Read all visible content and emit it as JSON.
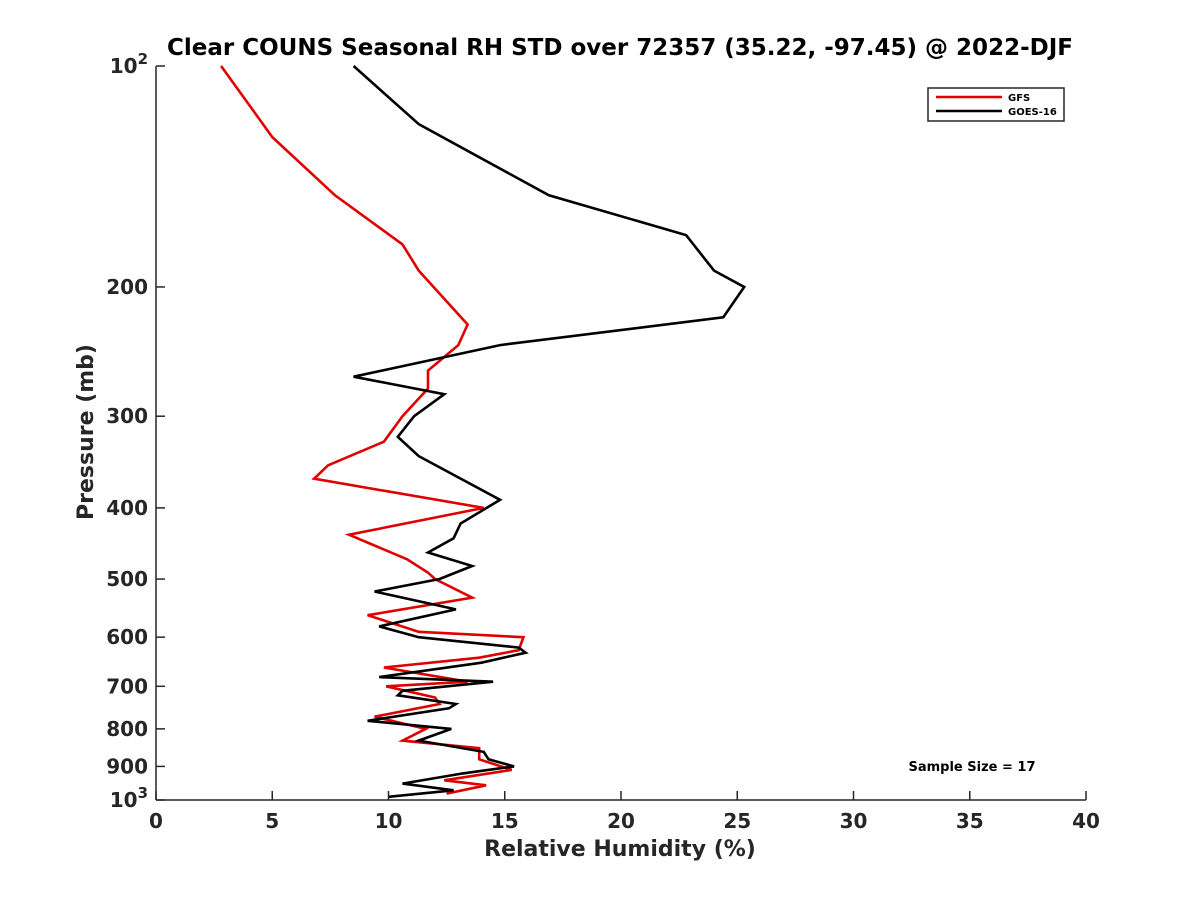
{
  "chart_data": {
    "type": "line",
    "title": "Clear COUNS Seasonal RH STD over 72357 (35.22, -97.45) @ 2022-DJF",
    "xlabel": "Relative Humidity (%)",
    "ylabel": "Pressure (mb)",
    "xlim": [
      0,
      40
    ],
    "ylim": [
      100,
      1000
    ],
    "yscale": "log",
    "y_reversed": true,
    "xticks": [
      0,
      5,
      10,
      15,
      20,
      25,
      30,
      35,
      40
    ],
    "yticks": [
      100,
      200,
      300,
      400,
      500,
      600,
      700,
      800,
      900,
      1000
    ],
    "ytick_labels": [
      "10^2",
      "200",
      "300",
      "400",
      "500",
      "600",
      "700",
      "800",
      "900",
      "10^3"
    ],
    "legend_position": "top-right",
    "annotation": "Sample Size = 17",
    "series": [
      {
        "name": "GFS",
        "color": "#e00000",
        "points": [
          [
            2.8,
            100
          ],
          [
            5.0,
            125
          ],
          [
            7.7,
            150
          ],
          [
            10.6,
            175
          ],
          [
            11.3,
            190
          ],
          [
            13.4,
            225
          ],
          [
            13.0,
            240
          ],
          [
            11.7,
            260
          ],
          [
            11.7,
            275
          ],
          [
            10.6,
            300
          ],
          [
            9.8,
            325
          ],
          [
            7.4,
            350
          ],
          [
            6.8,
            365
          ],
          [
            14.1,
            400
          ],
          [
            8.3,
            435
          ],
          [
            10.8,
            470
          ],
          [
            11.7,
            490
          ],
          [
            12.0,
            500
          ],
          [
            13.6,
            530
          ],
          [
            9.1,
            560
          ],
          [
            11.3,
            590
          ],
          [
            15.8,
            600
          ],
          [
            15.6,
            625
          ],
          [
            13.9,
            640
          ],
          [
            9.8,
            660
          ],
          [
            13.4,
            690
          ],
          [
            9.9,
            700
          ],
          [
            12.0,
            725
          ],
          [
            12.2,
            740
          ],
          [
            9.4,
            770
          ],
          [
            11.6,
            800
          ],
          [
            10.6,
            830
          ],
          [
            13.9,
            850
          ],
          [
            13.9,
            880
          ],
          [
            15.3,
            910
          ],
          [
            12.4,
            940
          ],
          [
            14.2,
            955
          ],
          [
            12.5,
            980
          ]
        ]
      },
      {
        "name": "GOES-16",
        "color": "#000000",
        "points": [
          [
            8.5,
            100
          ],
          [
            11.3,
            120
          ],
          [
            16.9,
            150
          ],
          [
            22.8,
            170
          ],
          [
            24.0,
            190
          ],
          [
            25.3,
            200
          ],
          [
            24.4,
            220
          ],
          [
            14.8,
            240
          ],
          [
            8.5,
            265
          ],
          [
            12.4,
            280
          ],
          [
            11.1,
            300
          ],
          [
            10.4,
            320
          ],
          [
            11.3,
            340
          ],
          [
            14.8,
            390
          ],
          [
            13.1,
            420
          ],
          [
            12.8,
            440
          ],
          [
            11.7,
            460
          ],
          [
            13.6,
            480
          ],
          [
            12.2,
            500
          ],
          [
            9.4,
            520
          ],
          [
            12.9,
            550
          ],
          [
            9.6,
            580
          ],
          [
            11.3,
            600
          ],
          [
            15.6,
            620
          ],
          [
            15.9,
            630
          ],
          [
            14.0,
            650
          ],
          [
            9.6,
            680
          ],
          [
            14.5,
            690
          ],
          [
            10.6,
            710
          ],
          [
            10.4,
            720
          ],
          [
            12.9,
            740
          ],
          [
            12.6,
            750
          ],
          [
            9.1,
            780
          ],
          [
            12.7,
            800
          ],
          [
            11.3,
            830
          ],
          [
            14.1,
            860
          ],
          [
            14.3,
            880
          ],
          [
            15.4,
            900
          ],
          [
            13.2,
            920
          ],
          [
            10.6,
            950
          ],
          [
            12.8,
            970
          ],
          [
            10.0,
            990
          ]
        ]
      }
    ]
  }
}
